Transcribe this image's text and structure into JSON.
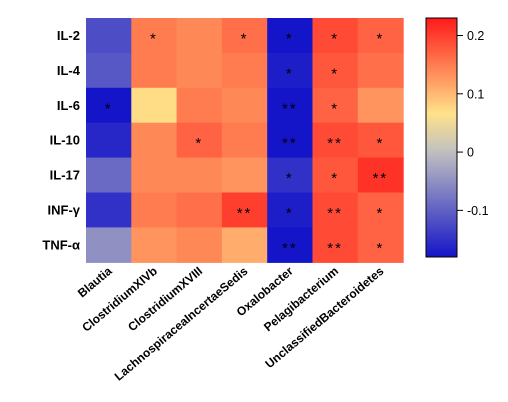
{
  "chart_data": {
    "type": "heatmap",
    "rows": [
      "IL-2",
      "IL-4",
      "IL-6",
      "IL-10",
      "IL-17",
      "INF-γ",
      "TNF-α"
    ],
    "columns": [
      "Blautia",
      "ClostridiumXIVb",
      "ClostridiumXVIII",
      "LachnospiraceaIncertaeSedis",
      "Oxalobacter",
      "Pelagibacterium",
      "UnclassifiedBacteroidetes"
    ],
    "values": [
      [
        -0.12,
        0.15,
        0.14,
        0.16,
        -0.18,
        0.19,
        0.17
      ],
      [
        -0.11,
        0.15,
        0.14,
        0.15,
        -0.17,
        0.18,
        0.16
      ],
      [
        -0.18,
        0.07,
        0.15,
        0.14,
        -0.19,
        0.17,
        0.13
      ],
      [
        -0.16,
        0.14,
        0.17,
        0.15,
        -0.19,
        0.19,
        0.18
      ],
      [
        -0.09,
        0.14,
        0.14,
        0.13,
        -0.15,
        0.18,
        0.21
      ],
      [
        -0.15,
        0.15,
        0.16,
        0.2,
        -0.17,
        0.19,
        0.17
      ],
      [
        -0.05,
        0.13,
        0.14,
        0.11,
        -0.19,
        0.19,
        0.17
      ]
    ],
    "significance": [
      [
        "",
        "*",
        "",
        "*",
        "*",
        "*",
        "*"
      ],
      [
        "",
        "",
        "",
        "",
        "*",
        "*",
        ""
      ],
      [
        "*",
        "",
        "",
        "",
        "**",
        "*",
        ""
      ],
      [
        "",
        "",
        "*",
        "",
        "**",
        "**",
        "*"
      ],
      [
        "",
        "",
        "",
        "",
        "*",
        "*",
        "**"
      ],
      [
        "",
        "",
        "",
        "**",
        "*",
        "**",
        "*"
      ],
      [
        "",
        "",
        "",
        "",
        "**",
        "**",
        "*"
      ]
    ],
    "colorbar": {
      "min": -0.18,
      "max": 0.23,
      "ticks": [
        {
          "value": 0.2,
          "label": "0.2"
        },
        {
          "value": 0.1,
          "label": "0.1"
        },
        {
          "value": 0,
          "label": "0"
        },
        {
          "value": -0.1,
          "label": "-0.1"
        }
      ],
      "colors": [
        "#1414c8",
        "#c0c0c0",
        "#ffe28a",
        "#ff1a1a"
      ]
    }
  }
}
